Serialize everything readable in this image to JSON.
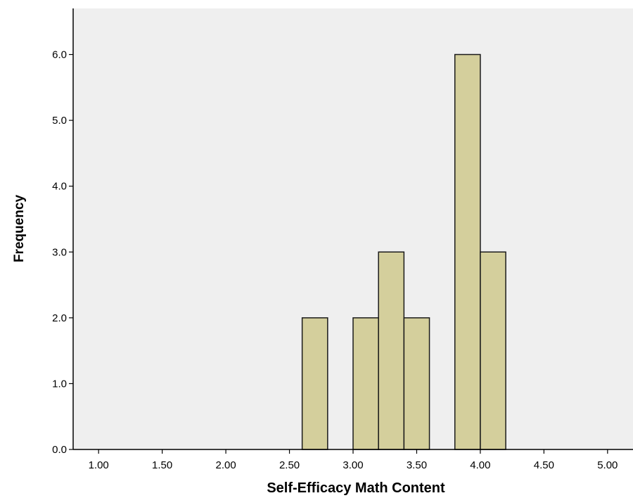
{
  "chart_data": {
    "type": "bar",
    "title": "",
    "xlabel": "Self-Efficacy Math Content",
    "ylabel": "Frequency",
    "xlim": [
      0.8,
      5.2
    ],
    "ylim": [
      0,
      6.7
    ],
    "x_ticks": [
      "1.00",
      "1.50",
      "2.00",
      "2.50",
      "3.00",
      "3.50",
      "4.00",
      "4.50",
      "5.00"
    ],
    "x_tick_values": [
      1.0,
      1.5,
      2.0,
      2.5,
      3.0,
      3.5,
      4.0,
      4.5,
      5.0
    ],
    "y_ticks": [
      "0.0",
      "1.0",
      "2.0",
      "3.0",
      "4.0",
      "5.0",
      "6.0"
    ],
    "y_tick_values": [
      0,
      1,
      2,
      3,
      4,
      5,
      6
    ],
    "bins": [
      {
        "start": 2.6,
        "end": 2.8,
        "value": 2
      },
      {
        "start": 3.0,
        "end": 3.2,
        "value": 2
      },
      {
        "start": 3.2,
        "end": 3.4,
        "value": 3
      },
      {
        "start": 3.4,
        "end": 3.6,
        "value": 2
      },
      {
        "start": 3.8,
        "end": 4.0,
        "value": 6
      },
      {
        "start": 4.0,
        "end": 4.2,
        "value": 3
      }
    ],
    "bar_color": "#d4cf9c",
    "bar_edge_color": "#1a1a1a",
    "plot_background": "#efefef",
    "grid": false,
    "legend": "none"
  }
}
